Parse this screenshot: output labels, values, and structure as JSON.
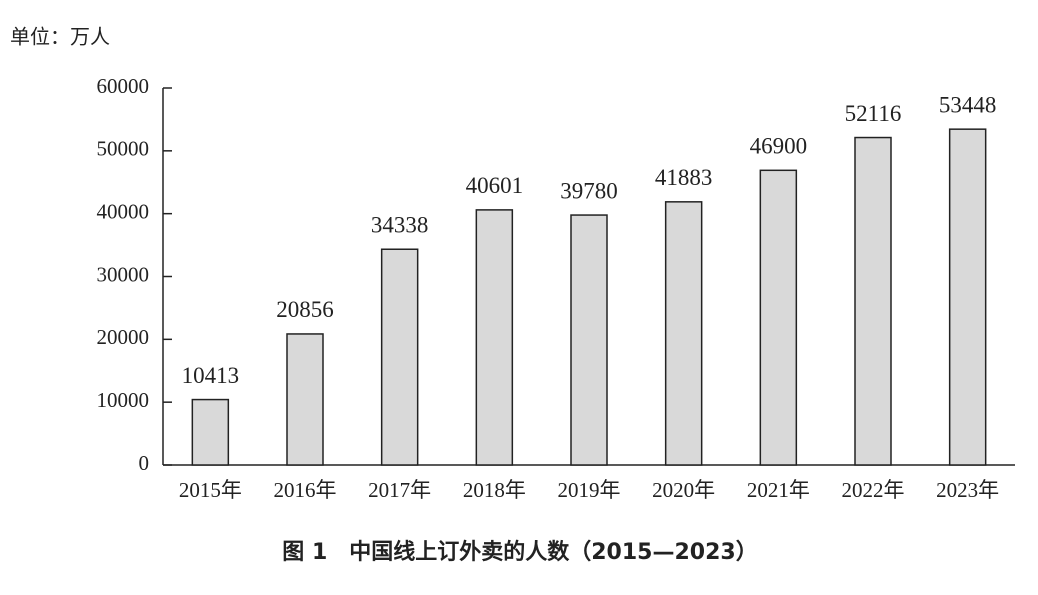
{
  "chart_data": {
    "type": "bar",
    "unit_label": "单位：万人",
    "title": "图 1　中国线上订外卖的人数（2015—2023）",
    "categories": [
      "2015年",
      "2016年",
      "2017年",
      "2018年",
      "2019年",
      "2020年",
      "2021年",
      "2022年",
      "2023年"
    ],
    "values": [
      10413,
      20856,
      34338,
      40601,
      39780,
      41883,
      46900,
      52116,
      53448
    ],
    "color": "#d9d9d9",
    "ylim": [
      0,
      60000
    ],
    "yticks": [
      0,
      10000,
      20000,
      30000,
      40000,
      50000,
      60000
    ],
    "grid": false
  }
}
